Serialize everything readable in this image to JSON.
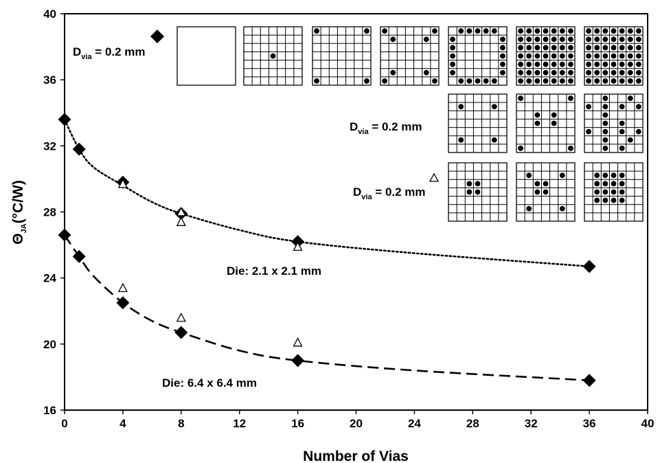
{
  "chart_data": {
    "type": "scatter",
    "xlabel": "Number of Vias",
    "ylabel": "Θ",
    "ylabel_sub": "JA",
    "ylabel_unit": "(°C/W)",
    "xlim": [
      0,
      40
    ],
    "ylim": [
      16,
      40
    ],
    "xticks": [
      "0",
      "4",
      "8",
      "12",
      "16",
      "20",
      "24",
      "28",
      "32",
      "36",
      "40"
    ],
    "yticks": [
      "16",
      "20",
      "24",
      "28",
      "32",
      "36",
      "40"
    ],
    "grid": false,
    "annotations": [
      {
        "text": "Die: 2.1 x 2.1 mm",
        "x": 16.8,
        "y": 24.5
      },
      {
        "text": "Die: 6.4 x 6.4 mm",
        "x": 6.7,
        "y": 18.9
      }
    ],
    "legend": [
      {
        "marker": "diamond",
        "label": "D",
        "sub": "via",
        "rest": " = 0.2 mm"
      },
      {
        "marker": "none",
        "label": "D",
        "sub": "via",
        "rest": " = 0.2 mm"
      },
      {
        "marker": "triangle",
        "label": "D",
        "sub": "via",
        "rest": " = 0.2 mm"
      }
    ],
    "series": [
      {
        "marker": "diamond",
        "x": [
          0,
          1,
          4,
          8,
          16,
          36
        ],
        "y": [
          33.6,
          31.8,
          29.8,
          27.9,
          26.2,
          24.7
        ]
      },
      {
        "marker": "triangle",
        "x": [
          4,
          8,
          8,
          16
        ],
        "y": [
          29.7,
          28.0,
          27.4,
          25.9
        ]
      },
      {
        "marker": "diamond",
        "x": [
          0,
          1,
          4,
          8,
          16,
          36
        ],
        "y": [
          26.6,
          25.3,
          22.5,
          20.7,
          19.0,
          17.8
        ]
      },
      {
        "marker": "triangle",
        "x": [
          4,
          8,
          16
        ],
        "y": [
          23.4,
          21.6,
          20.1
        ]
      },
      {
        "line": "dotted",
        "x": [
          0,
          1,
          2,
          4,
          6,
          8,
          12,
          16,
          24,
          36
        ],
        "y": [
          33.6,
          31.8,
          30.7,
          29.6,
          28.6,
          27.9,
          26.9,
          26.2,
          25.5,
          24.7
        ]
      },
      {
        "line": "dashed",
        "x": [
          0,
          1,
          2,
          4,
          6,
          8,
          12,
          16,
          24,
          36
        ],
        "y": [
          26.6,
          25.3,
          24.1,
          22.5,
          21.4,
          20.7,
          19.6,
          19.0,
          18.4,
          17.8
        ]
      }
    ],
    "via_grids": [
      {
        "row": 0,
        "col": 0,
        "grid": false,
        "dots": []
      },
      {
        "row": 0,
        "col": 1,
        "grid": true,
        "dots": [
          [
            3,
            3
          ]
        ]
      },
      {
        "row": 0,
        "col": 2,
        "grid": true,
        "dots": [
          [
            0,
            0
          ],
          [
            0,
            6
          ],
          [
            6,
            0
          ],
          [
            6,
            6
          ]
        ]
      },
      {
        "row": 0,
        "col": 3,
        "grid": true,
        "dots": [
          [
            0,
            0
          ],
          [
            0,
            6
          ],
          [
            1,
            1
          ],
          [
            1,
            5
          ],
          [
            5,
            1
          ],
          [
            5,
            5
          ],
          [
            6,
            0
          ],
          [
            6,
            6
          ]
        ]
      },
      {
        "row": 0,
        "col": 4,
        "grid": true,
        "dots": [
          [
            0,
            1
          ],
          [
            0,
            2
          ],
          [
            0,
            3
          ],
          [
            0,
            4
          ],
          [
            0,
            5
          ],
          [
            1,
            0
          ],
          [
            2,
            0
          ],
          [
            3,
            0
          ],
          [
            4,
            0
          ],
          [
            5,
            0
          ],
          [
            1,
            6
          ],
          [
            2,
            6
          ],
          [
            3,
            6
          ],
          [
            4,
            6
          ],
          [
            5,
            6
          ],
          [
            6,
            1
          ],
          [
            6,
            2
          ],
          [
            6,
            3
          ],
          [
            6,
            4
          ],
          [
            6,
            5
          ]
        ]
      },
      {
        "row": 0,
        "col": 5,
        "grid": true,
        "dots": [
          [
            0,
            0
          ],
          [
            0,
            1
          ],
          [
            0,
            2
          ],
          [
            0,
            3
          ],
          [
            0,
            4
          ],
          [
            0,
            5
          ],
          [
            0,
            6
          ],
          [
            1,
            0
          ],
          [
            1,
            1
          ],
          [
            1,
            2
          ],
          [
            1,
            3
          ],
          [
            1,
            4
          ],
          [
            1,
            5
          ],
          [
            1,
            6
          ],
          [
            2,
            0
          ],
          [
            2,
            1
          ],
          [
            2,
            2
          ],
          [
            2,
            3
          ],
          [
            2,
            4
          ],
          [
            2,
            5
          ],
          [
            2,
            6
          ],
          [
            3,
            0
          ],
          [
            3,
            1
          ],
          [
            3,
            2
          ],
          [
            3,
            3
          ],
          [
            3,
            4
          ],
          [
            3,
            5
          ],
          [
            3,
            6
          ],
          [
            4,
            0
          ],
          [
            4,
            1
          ],
          [
            4,
            2
          ],
          [
            4,
            3
          ],
          [
            4,
            4
          ],
          [
            4,
            5
          ],
          [
            4,
            6
          ],
          [
            5,
            0
          ],
          [
            5,
            1
          ],
          [
            5,
            2
          ],
          [
            5,
            3
          ],
          [
            5,
            4
          ],
          [
            5,
            5
          ],
          [
            5,
            6
          ],
          [
            6,
            0
          ],
          [
            6,
            1
          ],
          [
            6,
            2
          ],
          [
            6,
            3
          ],
          [
            6,
            4
          ],
          [
            6,
            5
          ],
          [
            6,
            6
          ]
        ]
      },
      {
        "row": 0,
        "col": 6,
        "grid": true,
        "dots": [
          [
            0,
            0
          ],
          [
            0,
            1
          ],
          [
            0,
            2
          ],
          [
            0,
            3
          ],
          [
            0,
            4
          ],
          [
            0,
            5
          ],
          [
            0,
            6
          ],
          [
            1,
            0
          ],
          [
            1,
            1
          ],
          [
            1,
            2
          ],
          [
            1,
            3
          ],
          [
            1,
            4
          ],
          [
            1,
            5
          ],
          [
            1,
            6
          ],
          [
            2,
            0
          ],
          [
            2,
            1
          ],
          [
            2,
            2
          ],
          [
            2,
            3
          ],
          [
            2,
            4
          ],
          [
            2,
            5
          ],
          [
            2,
            6
          ],
          [
            3,
            0
          ],
          [
            3,
            1
          ],
          [
            3,
            2
          ],
          [
            3,
            3
          ],
          [
            3,
            4
          ],
          [
            3,
            5
          ],
          [
            3,
            6
          ],
          [
            4,
            0
          ],
          [
            4,
            1
          ],
          [
            4,
            2
          ],
          [
            4,
            3
          ],
          [
            4,
            4
          ],
          [
            4,
            5
          ],
          [
            4,
            6
          ],
          [
            5,
            0
          ],
          [
            5,
            1
          ],
          [
            5,
            2
          ],
          [
            5,
            3
          ],
          [
            5,
            4
          ],
          [
            5,
            5
          ],
          [
            5,
            6
          ],
          [
            6,
            0
          ],
          [
            6,
            1
          ],
          [
            6,
            2
          ],
          [
            6,
            3
          ],
          [
            6,
            4
          ],
          [
            6,
            5
          ],
          [
            6,
            6
          ]
        ]
      },
      {
        "row": 1,
        "col": 4,
        "grid": true,
        "dots": [
          [
            1,
            1
          ],
          [
            1,
            5
          ],
          [
            5,
            1
          ],
          [
            5,
            5
          ]
        ]
      },
      {
        "row": 1,
        "col": 5,
        "grid": true,
        "dots": [
          [
            0,
            0
          ],
          [
            0,
            6
          ],
          [
            2,
            2
          ],
          [
            2,
            4
          ],
          [
            3,
            2
          ],
          [
            3,
            4
          ],
          [
            6,
            0
          ],
          [
            6,
            6
          ]
        ]
      },
      {
        "row": 1,
        "col": 6,
        "grid": true,
        "dots": [
          [
            0,
            2
          ],
          [
            0,
            5
          ],
          [
            1,
            0
          ],
          [
            1,
            2
          ],
          [
            1,
            4
          ],
          [
            1,
            6
          ],
          [
            2,
            2
          ],
          [
            3,
            2
          ],
          [
            3,
            4
          ],
          [
            4,
            0
          ],
          [
            4,
            2
          ],
          [
            4,
            4
          ],
          [
            4,
            6
          ],
          [
            5,
            2
          ],
          [
            5,
            5
          ],
          [
            6,
            2
          ],
          [
            6,
            4
          ]
        ]
      },
      {
        "row": 2,
        "col": 4,
        "grid": true,
        "dots": [
          [
            2,
            2
          ],
          [
            2,
            3
          ],
          [
            3,
            2
          ],
          [
            3,
            3
          ]
        ]
      },
      {
        "row": 2,
        "col": 5,
        "grid": true,
        "dots": [
          [
            1,
            1
          ],
          [
            1,
            5
          ],
          [
            2,
            2
          ],
          [
            2,
            3
          ],
          [
            3,
            2
          ],
          [
            3,
            3
          ],
          [
            5,
            1
          ],
          [
            5,
            5
          ]
        ]
      },
      {
        "row": 2,
        "col": 6,
        "grid": true,
        "dots": [
          [
            1,
            1
          ],
          [
            1,
            2
          ],
          [
            1,
            3
          ],
          [
            1,
            4
          ],
          [
            2,
            1
          ],
          [
            2,
            2
          ],
          [
            2,
            3
          ],
          [
            2,
            4
          ],
          [
            3,
            1
          ],
          [
            3,
            2
          ],
          [
            3,
            3
          ],
          [
            3,
            4
          ],
          [
            4,
            1
          ],
          [
            4,
            2
          ],
          [
            4,
            3
          ],
          [
            4,
            4
          ]
        ]
      }
    ]
  }
}
